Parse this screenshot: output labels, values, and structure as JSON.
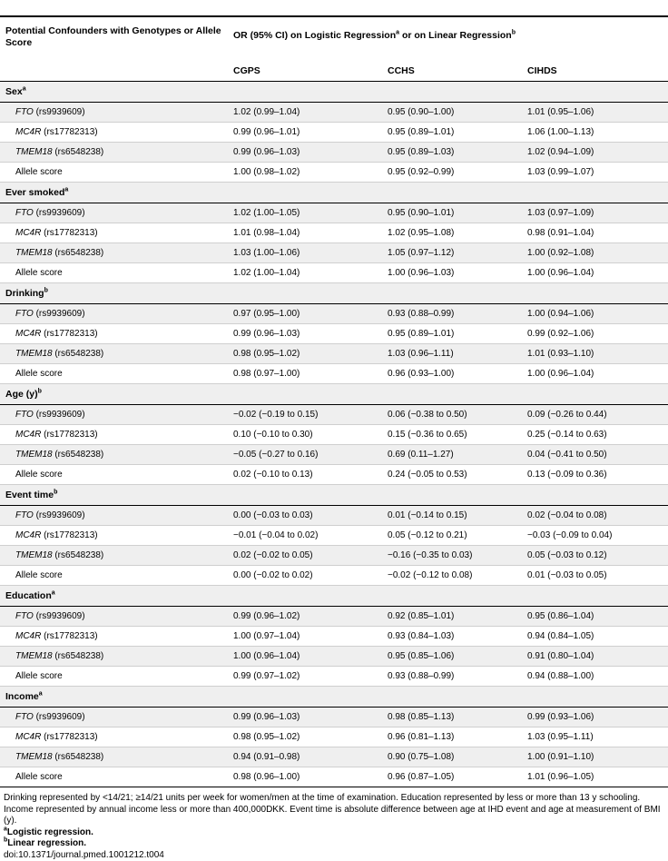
{
  "header": {
    "col1": "Potential Confounders with Genotypes or Allele Score",
    "spanning": "OR (95% CI) on Logistic Regression",
    "spanning_sup1": "a",
    "spanning_mid": " or on Linear Regression",
    "spanning_sup2": "b",
    "cols": [
      "CGPS",
      "CCHS",
      "CIHDS"
    ]
  },
  "sections": [
    {
      "title": "Sex",
      "sup": "a",
      "rows": [
        {
          "gene": "FTO",
          "snp": " (rs9939609)",
          "v": [
            "1.02 (0.99–1.04)",
            "0.95 (0.90–1.00)",
            "1.01 (0.95–1.06)"
          ]
        },
        {
          "gene": "MC4R",
          "snp": " (rs17782313)",
          "v": [
            "0.99 (0.96–1.01)",
            "0.95 (0.89–1.01)",
            "1.06 (1.00–1.13)"
          ]
        },
        {
          "gene": "TMEM18",
          "snp": " (rs6548238)",
          "v": [
            "0.99 (0.96–1.03)",
            "0.95 (0.89–1.03)",
            "1.02 (0.94–1.09)"
          ]
        },
        {
          "gene": "",
          "snp": "Allele score",
          "v": [
            "1.00 (0.98–1.02)",
            "0.95 (0.92–0.99)",
            "1.03 (0.99–1.07)"
          ]
        }
      ]
    },
    {
      "title": "Ever smoked",
      "sup": "a",
      "rows": [
        {
          "gene": "FTO",
          "snp": " (rs9939609)",
          "v": [
            "1.02 (1.00–1.05)",
            "0.95 (0.90–1.01)",
            "1.03 (0.97–1.09)"
          ]
        },
        {
          "gene": "MC4R",
          "snp": " (rs17782313)",
          "v": [
            "1.01 (0.98–1.04)",
            "1.02 (0.95–1.08)",
            "0.98 (0.91–1.04)"
          ]
        },
        {
          "gene": "TMEM18",
          "snp": " (rs6548238)",
          "v": [
            "1.03 (1.00–1.06)",
            "1.05 (0.97–1.12)",
            "1.00 (0.92–1.08)"
          ]
        },
        {
          "gene": "",
          "snp": "Allele score",
          "v": [
            "1.02 (1.00–1.04)",
            "1.00 (0.96–1.03)",
            "1.00 (0.96–1.04)"
          ]
        }
      ]
    },
    {
      "title": "Drinking",
      "sup": "b",
      "rows": [
        {
          "gene": "FTO",
          "snp": " (rs9939609)",
          "v": [
            "0.97 (0.95–1.00)",
            "0.93 (0.88–0.99)",
            "1.00 (0.94–1.06)"
          ]
        },
        {
          "gene": "MC4R",
          "snp": " (rs17782313)",
          "v": [
            "0.99 (0.96–1.03)",
            "0.95 (0.89–1.01)",
            "0.99 (0.92–1.06)"
          ]
        },
        {
          "gene": "TMEM18",
          "snp": " (rs6548238)",
          "v": [
            "0.98 (0.95–1.02)",
            "1.03 (0.96–1.11)",
            "1.01 (0.93–1.10)"
          ]
        },
        {
          "gene": "",
          "snp": "Allele score",
          "v": [
            "0.98 (0.97–1.00)",
            "0.96 (0.93–1.00)",
            "1.00 (0.96–1.04)"
          ]
        }
      ]
    },
    {
      "title": "Age (y)",
      "sup": "b",
      "rows": [
        {
          "gene": "FTO",
          "snp": " (rs9939609)",
          "v": [
            "−0.02 (−0.19 to 0.15)",
            "0.06 (−0.38 to 0.50)",
            "0.09 (−0.26 to 0.44)"
          ]
        },
        {
          "gene": "MC4R",
          "snp": " (rs17782313)",
          "v": [
            "0.10 (−0.10 to 0.30)",
            "0.15 (−0.36 to 0.65)",
            "0.25 (−0.14 to 0.63)"
          ]
        },
        {
          "gene": "TMEM18",
          "snp": " (rs6548238)",
          "v": [
            "−0.05 (−0.27 to 0.16)",
            "0.69 (0.11–1.27)",
            "0.04 (−0.41 to 0.50)"
          ]
        },
        {
          "gene": "",
          "snp": "Allele score",
          "v": [
            "0.02 (−0.10 to 0.13)",
            "0.24 (−0.05 to 0.53)",
            "0.13 (−0.09 to 0.36)"
          ]
        }
      ]
    },
    {
      "title": "Event time",
      "sup": "b",
      "rows": [
        {
          "gene": "FTO",
          "snp": " (rs9939609)",
          "v": [
            "0.00 (−0.03 to 0.03)",
            "0.01 (−0.14 to 0.15)",
            "0.02 (−0.04 to 0.08)"
          ]
        },
        {
          "gene": "MC4R",
          "snp": " (rs17782313)",
          "v": [
            "−0.01 (−0.04 to 0.02)",
            "0.05 (−0.12 to 0.21)",
            "−0.03 (−0.09 to 0.04)"
          ]
        },
        {
          "gene": "TMEM18",
          "snp": " (rs6548238)",
          "v": [
            "0.02 (−0.02 to 0.05)",
            "−0.16 (−0.35 to 0.03)",
            "0.05 (−0.03 to 0.12)"
          ]
        },
        {
          "gene": "",
          "snp": "Allele score",
          "v": [
            "0.00 (−0.02 to 0.02)",
            "−0.02 (−0.12 to 0.08)",
            "0.01 (−0.03 to 0.05)"
          ]
        }
      ]
    },
    {
      "title": "Education",
      "sup": "a",
      "rows": [
        {
          "gene": "FTO",
          "snp": " (rs9939609)",
          "v": [
            "0.99 (0.96–1.02)",
            "0.92 (0.85–1.01)",
            "0.95 (0.86–1.04)"
          ]
        },
        {
          "gene": "MC4R",
          "snp": " (rs17782313)",
          "v": [
            "1.00 (0.97–1.04)",
            "0.93 (0.84–1.03)",
            "0.94 (0.84–1.05)"
          ]
        },
        {
          "gene": "TMEM18",
          "snp": " (rs6548238)",
          "v": [
            "1.00 (0.96–1.04)",
            "0.95 (0.85–1.06)",
            "0.91 (0.80–1.04)"
          ]
        },
        {
          "gene": "",
          "snp": "Allele score",
          "v": [
            "0.99 (0.97–1.02)",
            "0.93 (0.88–0.99)",
            "0.94 (0.88–1.00)"
          ]
        }
      ]
    },
    {
      "title": "Income",
      "sup": "a",
      "rows": [
        {
          "gene": "FTO",
          "snp": " (rs9939609)",
          "v": [
            "0.99 (0.96–1.03)",
            "0.98 (0.85–1.13)",
            "0.99 (0.93–1.06)"
          ]
        },
        {
          "gene": "MC4R",
          "snp": " (rs17782313)",
          "v": [
            "0.98 (0.95–1.02)",
            "0.96 (0.81–1.13)",
            "1.03 (0.95–1.11)"
          ]
        },
        {
          "gene": "TMEM18",
          "snp": " (rs6548238)",
          "v": [
            "0.94 (0.91–0.98)",
            "0.90 (0.75–1.08)",
            "1.00 (0.91–1.10)"
          ]
        },
        {
          "gene": "",
          "snp": "Allele score",
          "v": [
            "0.98 (0.96–1.00)",
            "0.96 (0.87–1.05)",
            "1.01 (0.96–1.05)"
          ]
        }
      ]
    }
  ],
  "footnotes": {
    "main": "Drinking represented by <14/21; ≥14/21 units per week for women/men at the time of examination. Education represented by less or more than 13 y schooling. Income represented by annual income less or more than 400,000DKK. Event time is absolute difference between age at IHD event and age at measurement of BMI (y).",
    "a_mark": "a",
    "a_text": "Logistic regression.",
    "b_mark": "b",
    "b_text": "Linear regression.",
    "doi": "doi:10.1371/journal.pmed.1001212.t004"
  }
}
